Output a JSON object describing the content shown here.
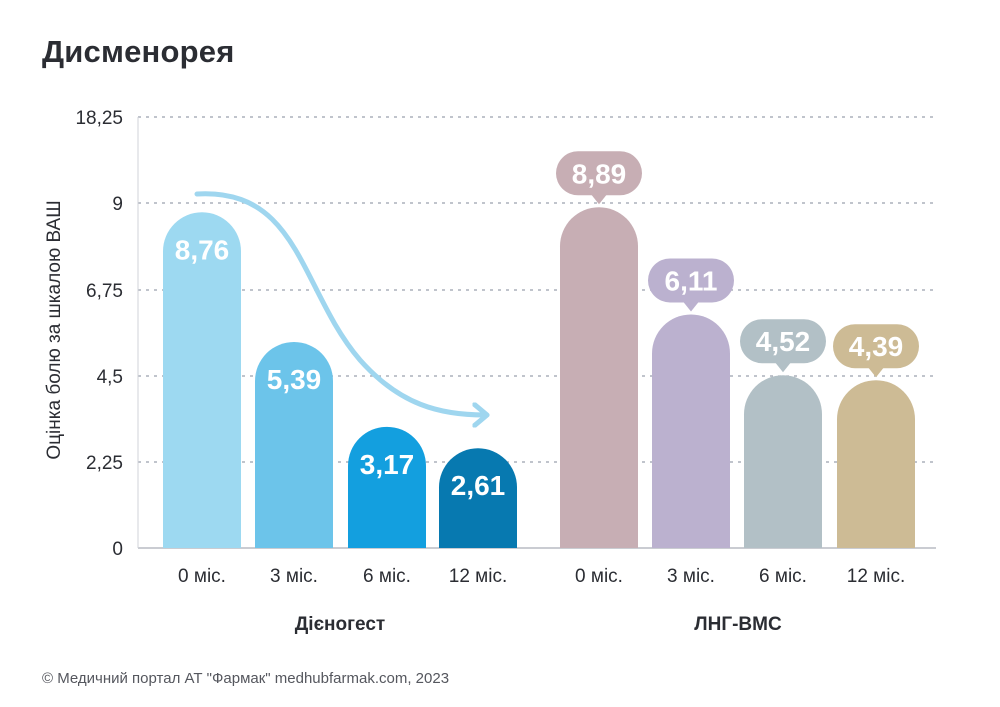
{
  "title": "Дисменорея",
  "footer": "© Медичний портал АТ \"Фармак\" medhubfarmak.com, 2023",
  "chart_data": {
    "type": "bar",
    "title": "Дисменорея",
    "ylabel": "Оцінка болю за шкалою ВАШ",
    "ylim": [
      0,
      18.25
    ],
    "y_ticks": [
      {
        "value": 0,
        "label": "0"
      },
      {
        "value": 2.25,
        "label": "2,25"
      },
      {
        "value": 4.5,
        "label": "4,5"
      },
      {
        "value": 6.75,
        "label": "6,75"
      },
      {
        "value": 9,
        "label": "9"
      },
      {
        "value": 18.25,
        "label": "18,25"
      }
    ],
    "grid": true,
    "groups": [
      {
        "name": "Дієногест",
        "categories": [
          "0 міс.",
          "3 міс.",
          "6 міс.",
          "12 міс."
        ],
        "values": [
          8.76,
          5.39,
          3.17,
          2.61
        ],
        "labels": [
          "8,76",
          "5,39",
          "3,17",
          "2,61"
        ],
        "colors": [
          "#9dd9f1",
          "#6cc4ea",
          "#139fdf",
          "#0779b0"
        ],
        "label_style": "inside",
        "trend_arrow": true
      },
      {
        "name": "ЛНГ-ВМС",
        "categories": [
          "0 міс.",
          "3 міс.",
          "6 міс.",
          "12 міс."
        ],
        "values": [
          8.89,
          6.11,
          4.52,
          4.39
        ],
        "labels": [
          "8,89",
          "6,11",
          "4,52",
          "4,39"
        ],
        "colors": [
          "#c7aeb4",
          "#bbb1cf",
          "#b2c0c6",
          "#cdbb95"
        ],
        "label_style": "bubble"
      }
    ]
  }
}
